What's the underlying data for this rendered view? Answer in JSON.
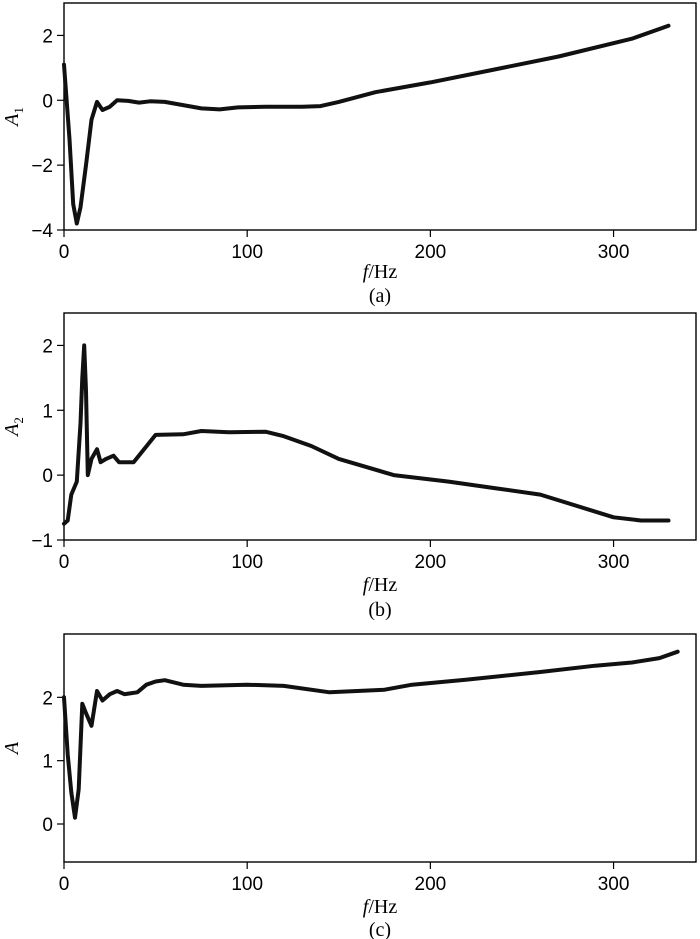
{
  "chart_data": [
    {
      "type": "line",
      "panel_label": "(a)",
      "xlabel_italic": "f",
      "xlabel_rest": "/Hz",
      "ylabel_italic": "A",
      "ylabel_sub": "1",
      "xlim": [
        0,
        345
      ],
      "ylim": [
        -4,
        3
      ],
      "xticks": [
        0,
        100,
        200,
        300
      ],
      "yticks": [
        -4,
        -2,
        0,
        2
      ],
      "line_color": "#111111",
      "x": [
        0,
        3,
        5,
        7,
        9,
        12,
        15,
        18,
        21,
        25,
        29,
        35,
        41,
        47,
        55,
        65,
        75,
        85,
        95,
        110,
        130,
        140,
        150,
        170,
        200,
        235,
        270,
        310,
        330
      ],
      "y": [
        1.1,
        -1.2,
        -3.2,
        -3.8,
        -3.3,
        -2.0,
        -0.6,
        -0.05,
        -0.3,
        -0.2,
        0.0,
        -0.02,
        -0.07,
        -0.03,
        -0.05,
        -0.15,
        -0.25,
        -0.28,
        -0.22,
        -0.2,
        -0.2,
        -0.18,
        -0.05,
        0.25,
        0.55,
        0.95,
        1.35,
        1.9,
        2.3
      ]
    },
    {
      "type": "line",
      "panel_label": "(b)",
      "xlabel_italic": "f",
      "xlabel_rest": "/Hz",
      "ylabel_italic": "A",
      "ylabel_sub": "2",
      "xlim": [
        0,
        345
      ],
      "ylim": [
        -1,
        2.5
      ],
      "xticks": [
        0,
        100,
        200,
        300
      ],
      "yticks": [
        -1,
        0,
        1,
        2
      ],
      "line_color": "#111111",
      "x": [
        0,
        2,
        4,
        7,
        9,
        10,
        11,
        12,
        13,
        15,
        18,
        20,
        23,
        27,
        30,
        33,
        38,
        50,
        65,
        75,
        90,
        110,
        120,
        135,
        150,
        180,
        210,
        235,
        260,
        300,
        315,
        330
      ],
      "y": [
        -0.75,
        -0.7,
        -0.3,
        -0.1,
        0.8,
        1.5,
        2.0,
        1.3,
        0.0,
        0.25,
        0.4,
        0.2,
        0.25,
        0.3,
        0.2,
        0.2,
        0.2,
        0.62,
        0.63,
        0.68,
        0.66,
        0.67,
        0.6,
        0.45,
        0.25,
        0.0,
        -0.1,
        -0.2,
        -0.3,
        -0.65,
        -0.7,
        -0.7
      ]
    },
    {
      "type": "line",
      "panel_label": "(c)",
      "xlabel_italic": "f",
      "xlabel_rest": "/Hz",
      "ylabel_italic": "A",
      "ylabel_sub": "",
      "xlim": [
        0,
        345
      ],
      "ylim": [
        -0.6,
        3
      ],
      "xticks": [
        0,
        100,
        200,
        300
      ],
      "yticks": [
        0,
        1,
        2
      ],
      "line_color": "#111111",
      "x": [
        0,
        2,
        4,
        6,
        8,
        10,
        12,
        15,
        18,
        21,
        25,
        29,
        33,
        40,
        45,
        50,
        55,
        65,
        75,
        100,
        120,
        145,
        175,
        190,
        220,
        260,
        290,
        310,
        325,
        335
      ],
      "y": [
        2.0,
        1.1,
        0.5,
        0.1,
        0.55,
        1.9,
        1.75,
        1.55,
        2.1,
        1.95,
        2.05,
        2.1,
        2.05,
        2.08,
        2.2,
        2.25,
        2.27,
        2.2,
        2.18,
        2.2,
        2.18,
        2.08,
        2.12,
        2.2,
        2.28,
        2.4,
        2.5,
        2.55,
        2.62,
        2.72
      ]
    }
  ]
}
